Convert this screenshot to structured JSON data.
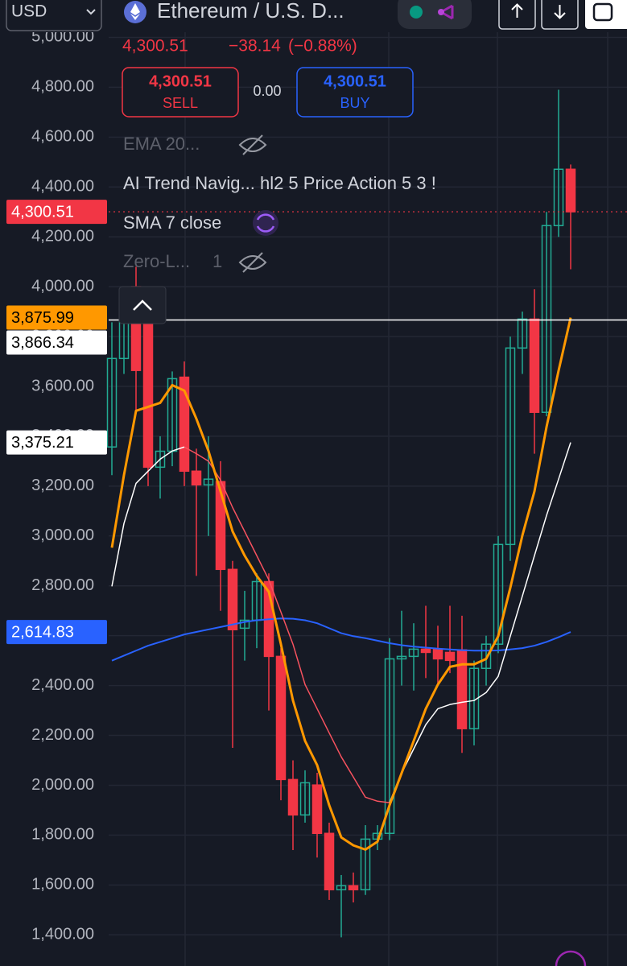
{
  "header": {
    "currency": "USD",
    "symbol": "Ethereum / U.S. D...",
    "price": "4,300.51",
    "change": "−38.14",
    "change_pct": "(−0.88%)",
    "sell": {
      "price": "4,300.51",
      "label": "SELL"
    },
    "spread": "0.00",
    "buy": {
      "price": "4,300.51",
      "label": "BUY"
    }
  },
  "indicators": [
    {
      "text": "EMA 20..."
    },
    {
      "text": "AI Trend Navig... hl2 5 Price Action 5 3 !"
    },
    {
      "text": "SMA 7 close"
    },
    {
      "text": "Zero-L...",
      "param": "1"
    }
  ],
  "chart_data": {
    "type": "candlestick",
    "grid": true,
    "ylim": [
      1275,
      5150
    ],
    "yticks": [
      {
        "value": 1400,
        "label": "1,400.00"
      },
      {
        "value": 1600,
        "label": "1,600.00"
      },
      {
        "value": 1800,
        "label": "1,800.00"
      },
      {
        "value": 2000,
        "label": "2,000.00"
      },
      {
        "value": 2200,
        "label": "2,200.00"
      },
      {
        "value": 2400,
        "label": "2,400.00"
      },
      {
        "value": 2600,
        "label": "2,600.00"
      },
      {
        "value": 2800,
        "label": "2,800.00"
      },
      {
        "value": 3000,
        "label": "3,000.00"
      },
      {
        "value": 3200,
        "label": "3,200.00"
      },
      {
        "value": 3400,
        "label": "3,400.00"
      },
      {
        "value": 3600,
        "label": "3,600.00"
      },
      {
        "value": 3800,
        "label": "3,800.00"
      },
      {
        "value": 4000,
        "label": "4,000.00"
      },
      {
        "value": 4200,
        "label": "4,200.00"
      },
      {
        "value": 4400,
        "label": "4,400.00"
      },
      {
        "value": 4600,
        "label": "4,600.00"
      },
      {
        "value": 4800,
        "label": "4,800.00"
      },
      {
        "value": 5000,
        "label": "5,000.00"
      }
    ],
    "up_color": "#22ab94",
    "down_color": "#f23645",
    "open": [
      3357,
      3712,
      4000,
      3954,
      3276,
      3340,
      3637,
      3260,
      3205,
      3218,
      2866,
      2630,
      2662,
      2817,
      2517,
      2023,
      1881,
      2001,
      1807,
      1581,
      1597,
      1581,
      1784,
      1807,
      2507,
      2517,
      2546,
      2546,
      2533,
      2543,
      2227,
      2469,
      2566,
      2966,
      3754,
      3870,
      3496,
      4245,
      4471
    ],
    "high": [
      3857,
      4000,
      4080,
      4000,
      3400,
      3660,
      3700,
      3350,
      3400,
      3300,
      2900,
      2780,
      2850,
      2850,
      2550,
      2100,
      2060,
      2050,
      1850,
      1640,
      1650,
      1840,
      1840,
      2590,
      2700,
      2650,
      2720,
      2640,
      2720,
      2680,
      2500,
      2600,
      3000,
      3800,
      3900,
      3990,
      4300,
      4790,
      4490
    ],
    "low": [
      3244,
      3650,
      3500,
      3200,
      3150,
      3280,
      3200,
      2840,
      3000,
      2700,
      2150,
      2500,
      2550,
      2300,
      1940,
      1740,
      1850,
      1710,
      1540,
      1390,
      1530,
      1560,
      1740,
      1780,
      2400,
      2380,
      2430,
      2400,
      2450,
      2130,
      2160,
      2400,
      2530,
      2900,
      3650,
      3330,
      3480,
      4200,
      4070
    ],
    "close": [
      3712,
      3873,
      3664,
      3276,
      3340,
      3631,
      3260,
      3205,
      3228,
      2866,
      2624,
      2662,
      2817,
      2517,
      2023,
      1881,
      2010,
      1807,
      1581,
      1597,
      1581,
      1784,
      1807,
      2507,
      2517,
      2546,
      2533,
      2507,
      2501,
      2227,
      2469,
      2566,
      2966,
      3754,
      3870,
      3496,
      4245,
      4471,
      4300.51
    ],
    "lines": [
      {
        "color": "#2962ff",
        "width": 2,
        "values": [
          2500,
          2520,
          2540,
          2560,
          2575,
          2590,
          2605,
          2615,
          2625,
          2635,
          2645,
          2655,
          2662,
          2666,
          2669,
          2668,
          2662,
          2650,
          2630,
          2610,
          2598,
          2590,
          2580,
          2570,
          2562,
          2556,
          2552,
          2548,
          2545,
          2542,
          2540,
          2540,
          2541,
          2545,
          2550,
          2560,
          2575,
          2594,
          2614.83
        ]
      },
      {
        "color": "#f7525f",
        "width": 1.5,
        "values": [
          null,
          null,
          null,
          null,
          null,
          null,
          3357,
          3330,
          3300,
          3224,
          3114,
          3018,
          2921,
          2824,
          2695,
          2566,
          2404,
          2307,
          2210,
          2114,
          2033,
          1952,
          1936,
          1930,
          null,
          null,
          null,
          null,
          null,
          null,
          null,
          null,
          null,
          null,
          null,
          null,
          null,
          null,
          null
        ]
      },
      {
        "color": "#ffffff",
        "width": 1.5,
        "values": [
          2798,
          3050,
          3211,
          3260,
          3308,
          3341,
          3357,
          null,
          null,
          null,
          null,
          null,
          null,
          null,
          null,
          null,
          null,
          null,
          null,
          null,
          null,
          null,
          null,
          1930,
          2049,
          2146,
          2243,
          2307,
          2324,
          2333,
          2340,
          2372,
          2437,
          2598,
          2759,
          2921,
          3082,
          3228,
          3375.21
        ]
      },
      {
        "color": "#ff9800",
        "width": 3,
        "values": [
          2953,
          3244,
          3502,
          3518,
          3534,
          3605,
          3583,
          3470,
          3341,
          3179,
          3018,
          2921,
          2840,
          2776,
          2566,
          2340,
          2178,
          2081,
          1920,
          1791,
          1759,
          1742,
          1774,
          1920,
          2049,
          2178,
          2307,
          2404,
          2475,
          2485,
          2485,
          2507,
          2598,
          2792,
          3002,
          3179,
          3437,
          3663,
          3875.99
        ]
      }
    ],
    "price_tags": [
      {
        "value": 4300.51,
        "label": "4,300.51",
        "color": "#f23645",
        "text_color": "#ffffff",
        "line": "dotted"
      },
      {
        "value": 3875.99,
        "label": "3,875.99",
        "color": "#ff9800",
        "text_color": "#000000"
      },
      {
        "value": 3866.34,
        "label": "3,866.34",
        "color": "#ffffff",
        "text_color": "#000000",
        "line": "solid"
      },
      {
        "value": 3375.21,
        "label": "3,375.21",
        "color": "#ffffff",
        "text_color": "#000000"
      },
      {
        "value": 2614.83,
        "label": "2,614.83",
        "color": "#2962ff",
        "text_color": "#ffffff"
      }
    ]
  }
}
